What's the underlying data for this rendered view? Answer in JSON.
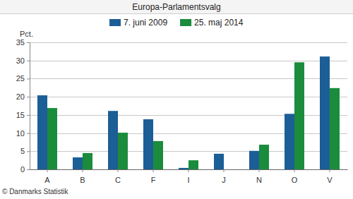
{
  "chart_data": {
    "type": "bar",
    "title": "Europa-Parlamentsvalg",
    "y_label": "Pct.",
    "annotations": [
      "© Danmarks Statistik"
    ],
    "categories": [
      "A",
      "B",
      "C",
      "F",
      "I",
      "J",
      "N",
      "O",
      "V"
    ],
    "series": [
      {
        "name": "7. juni 2009",
        "color": "#1c5e96",
        "values": [
          20.4,
          3.3,
          16.1,
          13.8,
          0.4,
          4.3,
          5.1,
          15.3,
          31.1
        ]
      },
      {
        "name": "25. maj 2014",
        "color": "#1a8c3c",
        "values": [
          16.9,
          4.5,
          10.1,
          7.8,
          2.5,
          null,
          6.8,
          29.5,
          22.4
        ]
      }
    ],
    "ylim": [
      0,
      35
    ],
    "yticks": [
      0,
      5,
      10,
      15,
      20,
      25,
      30,
      35
    ],
    "grid": true,
    "legend": "top"
  }
}
